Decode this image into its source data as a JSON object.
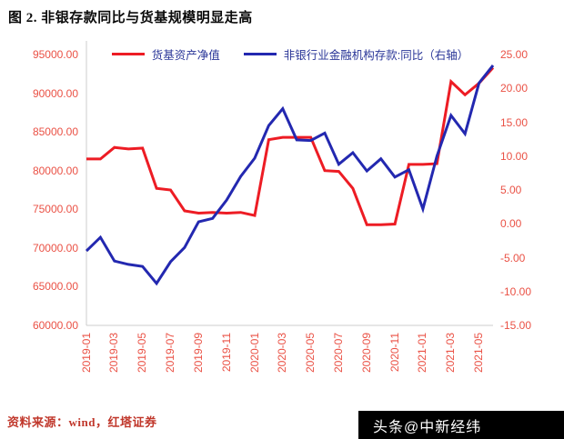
{
  "figure": {
    "title": "图 2. 非银存款同比与货基规模明显走高",
    "source": "资料来源：wind，红塔证券",
    "watermark": "头条@中新经纬"
  },
  "legend": [
    {
      "label": "货基资产净值",
      "color": "#ed1c24"
    },
    {
      "label": "非银行业金融机构存款:同比（右轴）",
      "color": "#2328b0"
    }
  ],
  "colors": {
    "red_line": "#ed1c24",
    "blue_line": "#2328b0",
    "axis_tick_text": "#ea5145",
    "legend_text": "#2a3698",
    "source_text": "#c0372b",
    "watermark_bg": "#000000",
    "watermark_text": "#ffffff"
  },
  "chart_data": {
    "type": "line",
    "title": "图 2. 非银存款同比与货基规模明显走高",
    "xlabel": "",
    "ylabel": "",
    "grid": false,
    "legend_position": "top",
    "x": [
      "2019-01",
      "2019-02",
      "2019-03",
      "2019-04",
      "2019-05",
      "2019-06",
      "2019-07",
      "2019-08",
      "2019-09",
      "2019-10",
      "2019-11",
      "2019-12",
      "2020-01",
      "2020-02",
      "2020-03",
      "2020-04",
      "2020-05",
      "2020-06",
      "2020-07",
      "2020-08",
      "2020-09",
      "2020-10",
      "2020-11",
      "2020-12",
      "2021-01",
      "2021-02",
      "2021-03",
      "2021-04",
      "2021-05",
      "2021-06"
    ],
    "x_tick_labels": [
      "2019-01",
      "2019-03",
      "2019-05",
      "2019-07",
      "2019-09",
      "2019-11",
      "2020-01",
      "2020-03",
      "2020-05",
      "2020-07",
      "2020-09",
      "2020-11",
      "2021-01",
      "2021-03",
      "2021-05"
    ],
    "left_axis": {
      "min": 60000,
      "max": 95000,
      "ticks": [
        "95000.00",
        "90000.00",
        "85000.00",
        "80000.00",
        "75000.00",
        "70000.00",
        "65000.00",
        "60000.00"
      ]
    },
    "right_axis": {
      "min": -15,
      "max": 25,
      "ticks": [
        "25.00",
        "20.00",
        "15.00",
        "10.00",
        "5.00",
        "0.00",
        "-5.00",
        "-10.00",
        "-15.00"
      ]
    },
    "series": [
      {
        "name": "货基资产净值",
        "axis": "left",
        "color": "#ed1c24",
        "values": [
          81500,
          81500,
          83000,
          82800,
          82900,
          77700,
          77500,
          74800,
          74500,
          74600,
          74500,
          74600,
          74200,
          84000,
          84300,
          84300,
          84300,
          80000,
          79900,
          77700,
          73000,
          73000,
          73100,
          80800,
          80800,
          80900,
          91500,
          89800,
          91300,
          93300
        ]
      },
      {
        "name": "非银行业金融机构存款:同比（右轴）",
        "axis": "right",
        "color": "#2328b0",
        "values": [
          -4,
          -2,
          -5.5,
          -6,
          -6.3,
          -8.8,
          -5.6,
          -3.5,
          0.3,
          0.8,
          3.5,
          7,
          9.7,
          14.5,
          17,
          12.4,
          12.3,
          13.4,
          8.8,
          10.5,
          7.8,
          9.6,
          6.9,
          8,
          2.2,
          10,
          16,
          13.3,
          20.8,
          23.4
        ]
      }
    ]
  }
}
